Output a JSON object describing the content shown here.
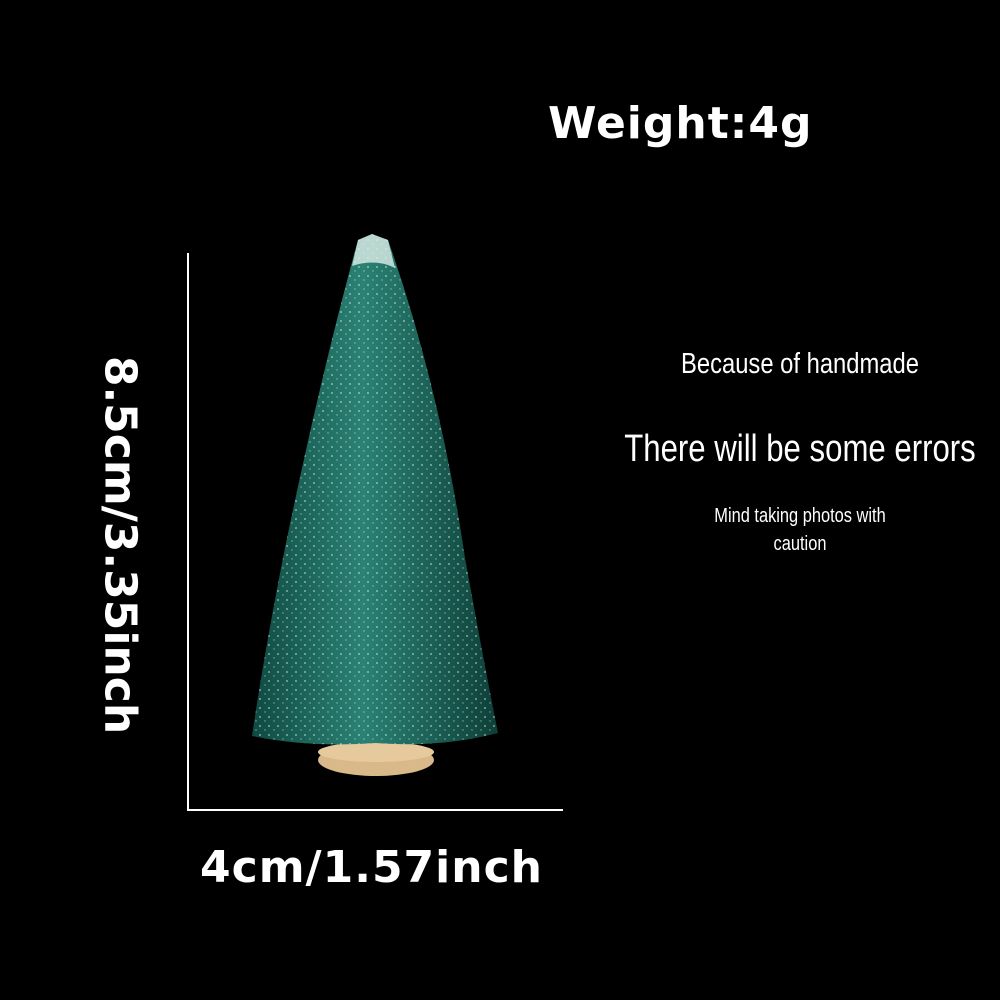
{
  "product": {
    "weight_label": "Weight:4g",
    "height_label": "8.5cm/3.35inch",
    "width_label": "4cm/1.57inch"
  },
  "notes": {
    "line1": "Because of handmade",
    "line2": "There will be some errors",
    "line3": "Mind taking photos with",
    "line4": "caution"
  },
  "colors": {
    "background": "#000000",
    "text": "#ffffff",
    "tree": "#1d6b60",
    "base": "#d9b88a"
  }
}
